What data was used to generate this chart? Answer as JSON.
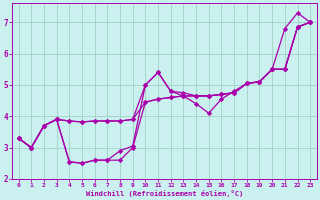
{
  "title": "",
  "xlabel": "Windchill (Refroidissement éolien,°C)",
  "ylabel": "",
  "background_color": "#caf0f0",
  "grid_color": "#99ccbb",
  "line_color": "#aa00aa",
  "marker": "D",
  "markersize": 2.2,
  "linewidth": 0.9,
  "xlim": [
    -0.5,
    23.5
  ],
  "ylim": [
    2.0,
    7.6
  ],
  "yticks": [
    2,
    3,
    4,
    5,
    6,
    7
  ],
  "xticks": [
    0,
    1,
    2,
    3,
    4,
    5,
    6,
    7,
    8,
    9,
    10,
    11,
    12,
    13,
    14,
    15,
    16,
    17,
    18,
    19,
    20,
    21,
    22,
    23
  ],
  "series": [
    [
      3.3,
      3.0,
      3.7,
      3.9,
      3.85,
      3.82,
      3.85,
      3.85,
      3.85,
      3.9,
      4.45,
      4.55,
      4.6,
      4.65,
      4.65,
      4.65,
      4.7,
      4.75,
      5.05,
      5.1,
      5.5,
      5.5,
      6.85,
      7.0
    ],
    [
      3.3,
      3.0,
      3.7,
      3.9,
      3.85,
      3.82,
      3.85,
      3.85,
      3.85,
      3.9,
      5.0,
      5.4,
      4.8,
      4.75,
      4.65,
      4.65,
      4.7,
      4.75,
      5.05,
      5.1,
      5.5,
      5.5,
      6.85,
      7.0
    ],
    [
      3.3,
      3.0,
      3.7,
      3.9,
      2.55,
      2.5,
      2.6,
      2.6,
      2.6,
      3.0,
      4.45,
      4.55,
      4.6,
      4.65,
      4.65,
      4.65,
      4.7,
      4.75,
      5.05,
      5.1,
      5.5,
      5.5,
      6.85,
      7.0
    ],
    [
      3.3,
      3.0,
      3.7,
      3.9,
      2.55,
      2.5,
      2.6,
      2.6,
      2.9,
      3.05,
      5.0,
      5.4,
      4.8,
      4.65,
      4.4,
      4.1,
      4.55,
      4.8,
      5.05,
      5.1,
      5.5,
      6.8,
      7.3,
      7.0
    ]
  ]
}
